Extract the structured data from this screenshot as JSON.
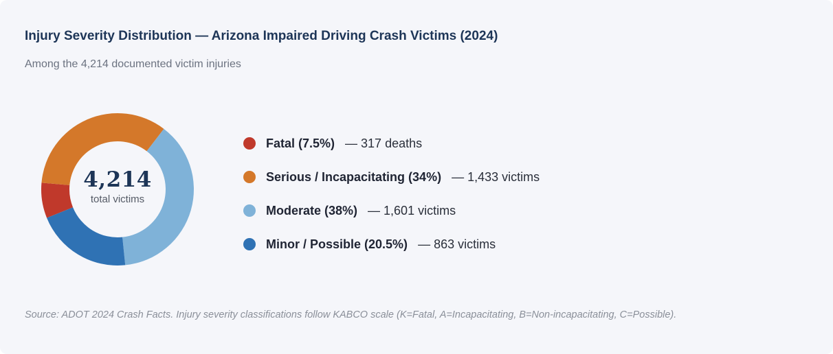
{
  "title": "Injury Severity Distribution — Arizona Impaired Driving Crash Victims (2024)",
  "subtitle": "Among the 4,214 documented victim injuries",
  "center": {
    "value": "4,214",
    "label": "total victims"
  },
  "source": "Source: ADOT 2024 Crash Facts. Injury severity classifications follow KABCO scale (K=Fatal, A=Incapacitating, B=Non-incapacitating, C=Possible).",
  "chart_data": {
    "type": "pie",
    "donut": true,
    "total": 4214,
    "legend_position": "right",
    "slices": [
      {
        "label": "Fatal (7.5%)",
        "detail": "— 317 deaths",
        "percent": 7.5,
        "value": 317,
        "color": "#c0392b"
      },
      {
        "label": "Serious / Incapacitating (34%)",
        "detail": "— 1,433 victims",
        "percent": 34,
        "value": 1433,
        "color": "#d4782a"
      },
      {
        "label": "Moderate (38%)",
        "detail": "— 1,601 victims",
        "percent": 38,
        "value": 1601,
        "color": "#7fb2d8"
      },
      {
        "label": "Minor / Possible (20.5%)",
        "detail": "— 863 victims",
        "percent": 20.5,
        "value": 863,
        "color": "#2f72b4"
      }
    ]
  }
}
